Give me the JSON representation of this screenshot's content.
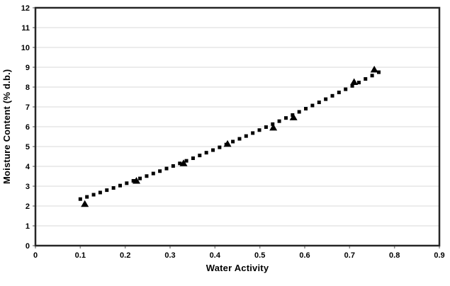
{
  "figure": {
    "background_color": "#ffffff",
    "frame_color": "#262626",
    "gridline_color": "#d9d9d9",
    "tick_color": "#8c8c8c",
    "marker_color": "#000000",
    "text_color": "#000000"
  },
  "chart_data": {
    "type": "scatter",
    "title": "",
    "xlabel": "Water Activity",
    "ylabel": "Moisture Content (% d.b.)",
    "xlim": [
      0,
      0.9
    ],
    "ylim": [
      0,
      12
    ],
    "grid": "horizontal",
    "legend": "none",
    "x_tick_values": [
      0,
      0.1,
      0.2,
      0.3,
      0.4,
      0.5,
      0.6,
      0.7,
      0.8,
      0.9
    ],
    "x_tick_labels": [
      "0",
      "0.1",
      "0.2",
      "0.3",
      "0.4",
      "0.5",
      "0.6",
      "0.7",
      "0.8",
      "0.9"
    ],
    "y_tick_values": [
      0,
      1,
      2,
      3,
      4,
      5,
      6,
      7,
      8,
      9,
      10,
      11,
      12
    ],
    "y_tick_labels": [
      "0",
      "1",
      "2",
      "3",
      "4",
      "5",
      "6",
      "7",
      "8",
      "9",
      "10",
      "11",
      "12"
    ],
    "series": [
      {
        "id": "predicted-curve",
        "marker": "square",
        "points": [
          [
            0.1,
            2.35
          ],
          [
            0.1148,
            2.46
          ],
          [
            0.1296,
            2.57
          ],
          [
            0.1443,
            2.68
          ],
          [
            0.1591,
            2.8
          ],
          [
            0.1739,
            2.91
          ],
          [
            0.1887,
            3.03
          ],
          [
            0.2034,
            3.15
          ],
          [
            0.2182,
            3.27
          ],
          [
            0.233,
            3.39
          ],
          [
            0.2478,
            3.51
          ],
          [
            0.2626,
            3.64
          ],
          [
            0.2773,
            3.76
          ],
          [
            0.2921,
            3.89
          ],
          [
            0.3069,
            4.02
          ],
          [
            0.3217,
            4.15
          ],
          [
            0.3364,
            4.28
          ],
          [
            0.3512,
            4.41
          ],
          [
            0.366,
            4.55
          ],
          [
            0.3808,
            4.69
          ],
          [
            0.3956,
            4.82
          ],
          [
            0.4103,
            4.96
          ],
          [
            0.4251,
            5.1
          ],
          [
            0.4399,
            5.25
          ],
          [
            0.4547,
            5.39
          ],
          [
            0.4694,
            5.53
          ],
          [
            0.4842,
            5.68
          ],
          [
            0.499,
            5.83
          ],
          [
            0.5138,
            5.98
          ],
          [
            0.5286,
            6.13
          ],
          [
            0.5433,
            6.28
          ],
          [
            0.5581,
            6.44
          ],
          [
            0.5729,
            6.59
          ],
          [
            0.5877,
            6.75
          ],
          [
            0.6024,
            6.91
          ],
          [
            0.6172,
            7.07
          ],
          [
            0.632,
            7.23
          ],
          [
            0.6468,
            7.39
          ],
          [
            0.6616,
            7.56
          ],
          [
            0.6763,
            7.73
          ],
          [
            0.6911,
            7.89
          ],
          [
            0.7059,
            8.06
          ],
          [
            0.7207,
            8.23
          ],
          [
            0.7354,
            8.41
          ],
          [
            0.7502,
            8.58
          ],
          [
            0.765,
            8.75
          ]
        ]
      },
      {
        "id": "experimental-points",
        "marker": "triangle",
        "points": [
          [
            0.11,
            2.1
          ],
          [
            0.225,
            3.27
          ],
          [
            0.33,
            4.15
          ],
          [
            0.428,
            5.13
          ],
          [
            0.53,
            5.95
          ],
          [
            0.575,
            6.47
          ],
          [
            0.71,
            8.25
          ],
          [
            0.755,
            8.88
          ]
        ]
      }
    ]
  }
}
